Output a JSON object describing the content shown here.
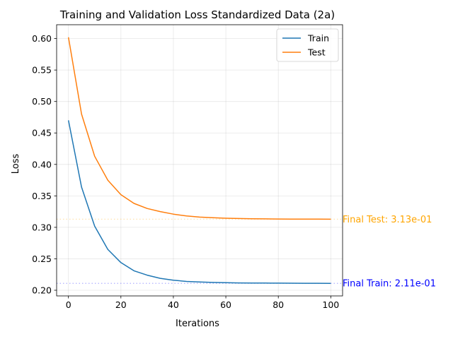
{
  "chart_data": {
    "type": "line",
    "title": "Training and Validation Loss Standardized Data (2a)",
    "xlabel": "Iterations",
    "ylabel": "Loss",
    "xlim": [
      -4.5,
      104.5
    ],
    "ylim": [
      0.191,
      0.622
    ],
    "xticks": [
      0,
      20,
      40,
      60,
      80,
      100
    ],
    "yticks": [
      0.2,
      0.25,
      0.3,
      0.35,
      0.4,
      0.45,
      0.5,
      0.55,
      0.6
    ],
    "xtick_labels": [
      "0",
      "20",
      "40",
      "60",
      "80",
      "100"
    ],
    "ytick_labels": [
      "0.20",
      "0.25",
      "0.30",
      "0.35",
      "0.40",
      "0.45",
      "0.50",
      "0.55",
      "0.60"
    ],
    "grid": true,
    "legend_position": "top-right",
    "x": [
      0,
      5,
      10,
      15,
      20,
      25,
      30,
      35,
      40,
      45,
      50,
      55,
      60,
      65,
      70,
      75,
      80,
      85,
      90,
      95,
      100
    ],
    "series": [
      {
        "name": "Train",
        "color": "#1f77b4",
        "values": [
          0.47,
          0.364,
          0.302,
          0.265,
          0.244,
          0.231,
          0.224,
          0.219,
          0.216,
          0.214,
          0.2131,
          0.2124,
          0.212,
          0.2117,
          0.2115,
          0.2114,
          0.2113,
          0.2112,
          0.2111,
          0.2111,
          0.211
        ]
      },
      {
        "name": "Test",
        "color": "#ff7f0e",
        "values": [
          0.602,
          0.48,
          0.413,
          0.375,
          0.352,
          0.338,
          0.33,
          0.325,
          0.321,
          0.318,
          0.3163,
          0.3153,
          0.3145,
          0.314,
          0.3136,
          0.3134,
          0.3132,
          0.3131,
          0.313,
          0.313,
          0.3129
        ]
      }
    ],
    "reference_lines": [
      {
        "y": 0.211,
        "color": "#0000ff",
        "style": "dotted"
      },
      {
        "y": 0.313,
        "color": "#ffa500",
        "style": "dotted"
      }
    ],
    "annotations": [
      {
        "text": "Final Test: 3.13e-01",
        "y": 0.313,
        "color": "#ffa500"
      },
      {
        "text": "Final Train: 2.11e-01",
        "y": 0.211,
        "color": "#0000ff"
      }
    ]
  }
}
